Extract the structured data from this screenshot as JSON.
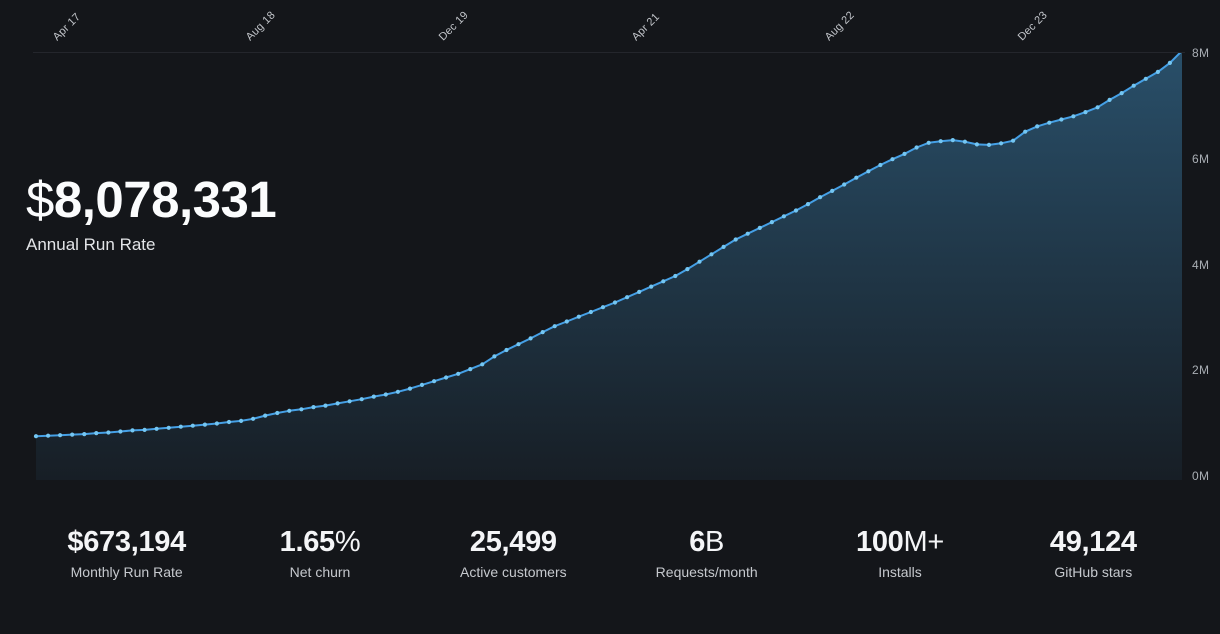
{
  "headline": {
    "prefix": "$",
    "value": "8,078,331",
    "label": "Annual Run Rate"
  },
  "stats": [
    {
      "value": "$673,194",
      "suffix": "",
      "label": "Monthly Run Rate"
    },
    {
      "value": "1.65",
      "suffix": "%",
      "label": "Net churn"
    },
    {
      "value": "25,499",
      "suffix": "",
      "label": "Active customers"
    },
    {
      "value": "6",
      "suffix": "B",
      "label": "Requests/month"
    },
    {
      "value": "100",
      "suffix": "M+",
      "label": "Installs"
    },
    {
      "value": "49,124",
      "suffix": "",
      "label": "GitHub stars"
    }
  ],
  "colors": {
    "background": "#14161a",
    "line": "#45a0e6",
    "marker": "#74c6f2",
    "area_fill": "#469ed7",
    "area_top_opacity": 0.42,
    "area_bottom_opacity": 0.06,
    "gridline": "#24262c",
    "axis_label": "#a9aeb4",
    "date_label": "#c2c5ca"
  },
  "chart_data": {
    "type": "area",
    "title": "Annual Run Rate over time",
    "unit": "USD millions",
    "legend": false,
    "grid": "single top line at 8M",
    "y_axis": {
      "max_millions": 8,
      "ticks": [
        {
          "millions": 8,
          "label": "8M"
        },
        {
          "millions": 6,
          "label": "6M"
        },
        {
          "millions": 4,
          "label": "4M"
        },
        {
          "millions": 2,
          "label": "2M"
        },
        {
          "millions": 0,
          "label": "0M"
        }
      ]
    },
    "x_axis": {
      "tick_labels": [
        {
          "index": 2,
          "label": "Apr 17"
        },
        {
          "index": 18,
          "label": "Aug 18"
        },
        {
          "index": 34,
          "label": "Dec 19"
        },
        {
          "index": 50,
          "label": "Apr 21"
        },
        {
          "index": 66,
          "label": "Aug 22"
        },
        {
          "index": 82,
          "label": "Dec 23"
        }
      ]
    },
    "values_millions": [
      0.79,
      0.8,
      0.81,
      0.82,
      0.83,
      0.85,
      0.86,
      0.88,
      0.9,
      0.91,
      0.93,
      0.95,
      0.97,
      0.99,
      1.01,
      1.03,
      1.06,
      1.08,
      1.12,
      1.18,
      1.23,
      1.27,
      1.3,
      1.34,
      1.37,
      1.41,
      1.45,
      1.49,
      1.54,
      1.58,
      1.63,
      1.69,
      1.76,
      1.83,
      1.9,
      1.97,
      2.06,
      2.15,
      2.3,
      2.42,
      2.53,
      2.64,
      2.76,
      2.87,
      2.96,
      3.05,
      3.14,
      3.23,
      3.32,
      3.42,
      3.52,
      3.62,
      3.72,
      3.82,
      3.95,
      4.09,
      4.23,
      4.37,
      4.51,
      4.62,
      4.73,
      4.84,
      4.95,
      5.06,
      5.18,
      5.31,
      5.43,
      5.55,
      5.68,
      5.8,
      5.92,
      6.03,
      6.13,
      6.25,
      6.34,
      6.37,
      6.39,
      6.36,
      6.31,
      6.3,
      6.33,
      6.38,
      6.55,
      6.65,
      6.72,
      6.78,
      6.84,
      6.92,
      7.01,
      7.15,
      7.28,
      7.42,
      7.55,
      7.68,
      7.85,
      8.08
    ]
  }
}
